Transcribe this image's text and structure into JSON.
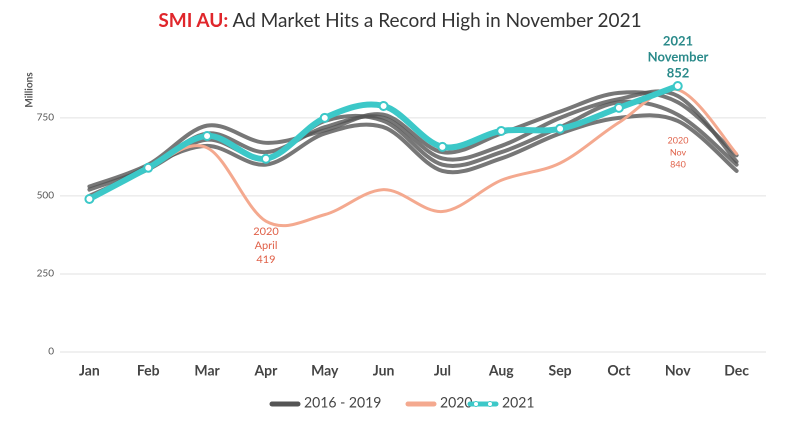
{
  "chart_data": {
    "type": "line",
    "title_highlight": "SMI AU:",
    "title": "Ad Market Hits a Record High in November 2021",
    "y_label": "Millions",
    "categories": [
      "Jan",
      "Feb",
      "Mar",
      "Apr",
      "May",
      "Jun",
      "Jul",
      "Aug",
      "Sep",
      "Oct",
      "Nov",
      "Dec"
    ],
    "ylim": [
      0,
      900
    ],
    "yticks": [
      0,
      250,
      500,
      750
    ],
    "grid": true,
    "series": [
      {
        "name": "2016 - 2019",
        "color": "#555555",
        "lines": [
          [
            530,
            600,
            725,
            670,
            710,
            760,
            640,
            700,
            770,
            830,
            800,
            630
          ],
          [
            520,
            590,
            700,
            640,
            720,
            750,
            620,
            660,
            750,
            810,
            820,
            610
          ],
          [
            500,
            585,
            680,
            620,
            740,
            740,
            600,
            640,
            720,
            800,
            760,
            600
          ],
          [
            490,
            595,
            660,
            600,
            700,
            720,
            580,
            620,
            700,
            750,
            740,
            580
          ]
        ]
      },
      {
        "name": "2020",
        "color": "#f4a98f",
        "values": [
          495,
          590,
          654,
          419,
          440,
          520,
          450,
          550,
          605,
          735,
          840,
          635
        ]
      },
      {
        "name": "2021",
        "color": "#3cc8c8",
        "values": [
          490,
          590,
          692,
          619,
          750,
          788,
          657,
          708,
          715,
          782,
          852,
          null
        ]
      }
    ],
    "annotations": [
      {
        "text": [
          "2020",
          "April",
          "419"
        ],
        "color": "#e0624a"
      },
      {
        "text": [
          "2020",
          "Nov",
          "840"
        ],
        "color": "#e0624a"
      },
      {
        "text": [
          "2021",
          "November",
          "852"
        ],
        "color": "#2a8a8a"
      }
    ]
  }
}
